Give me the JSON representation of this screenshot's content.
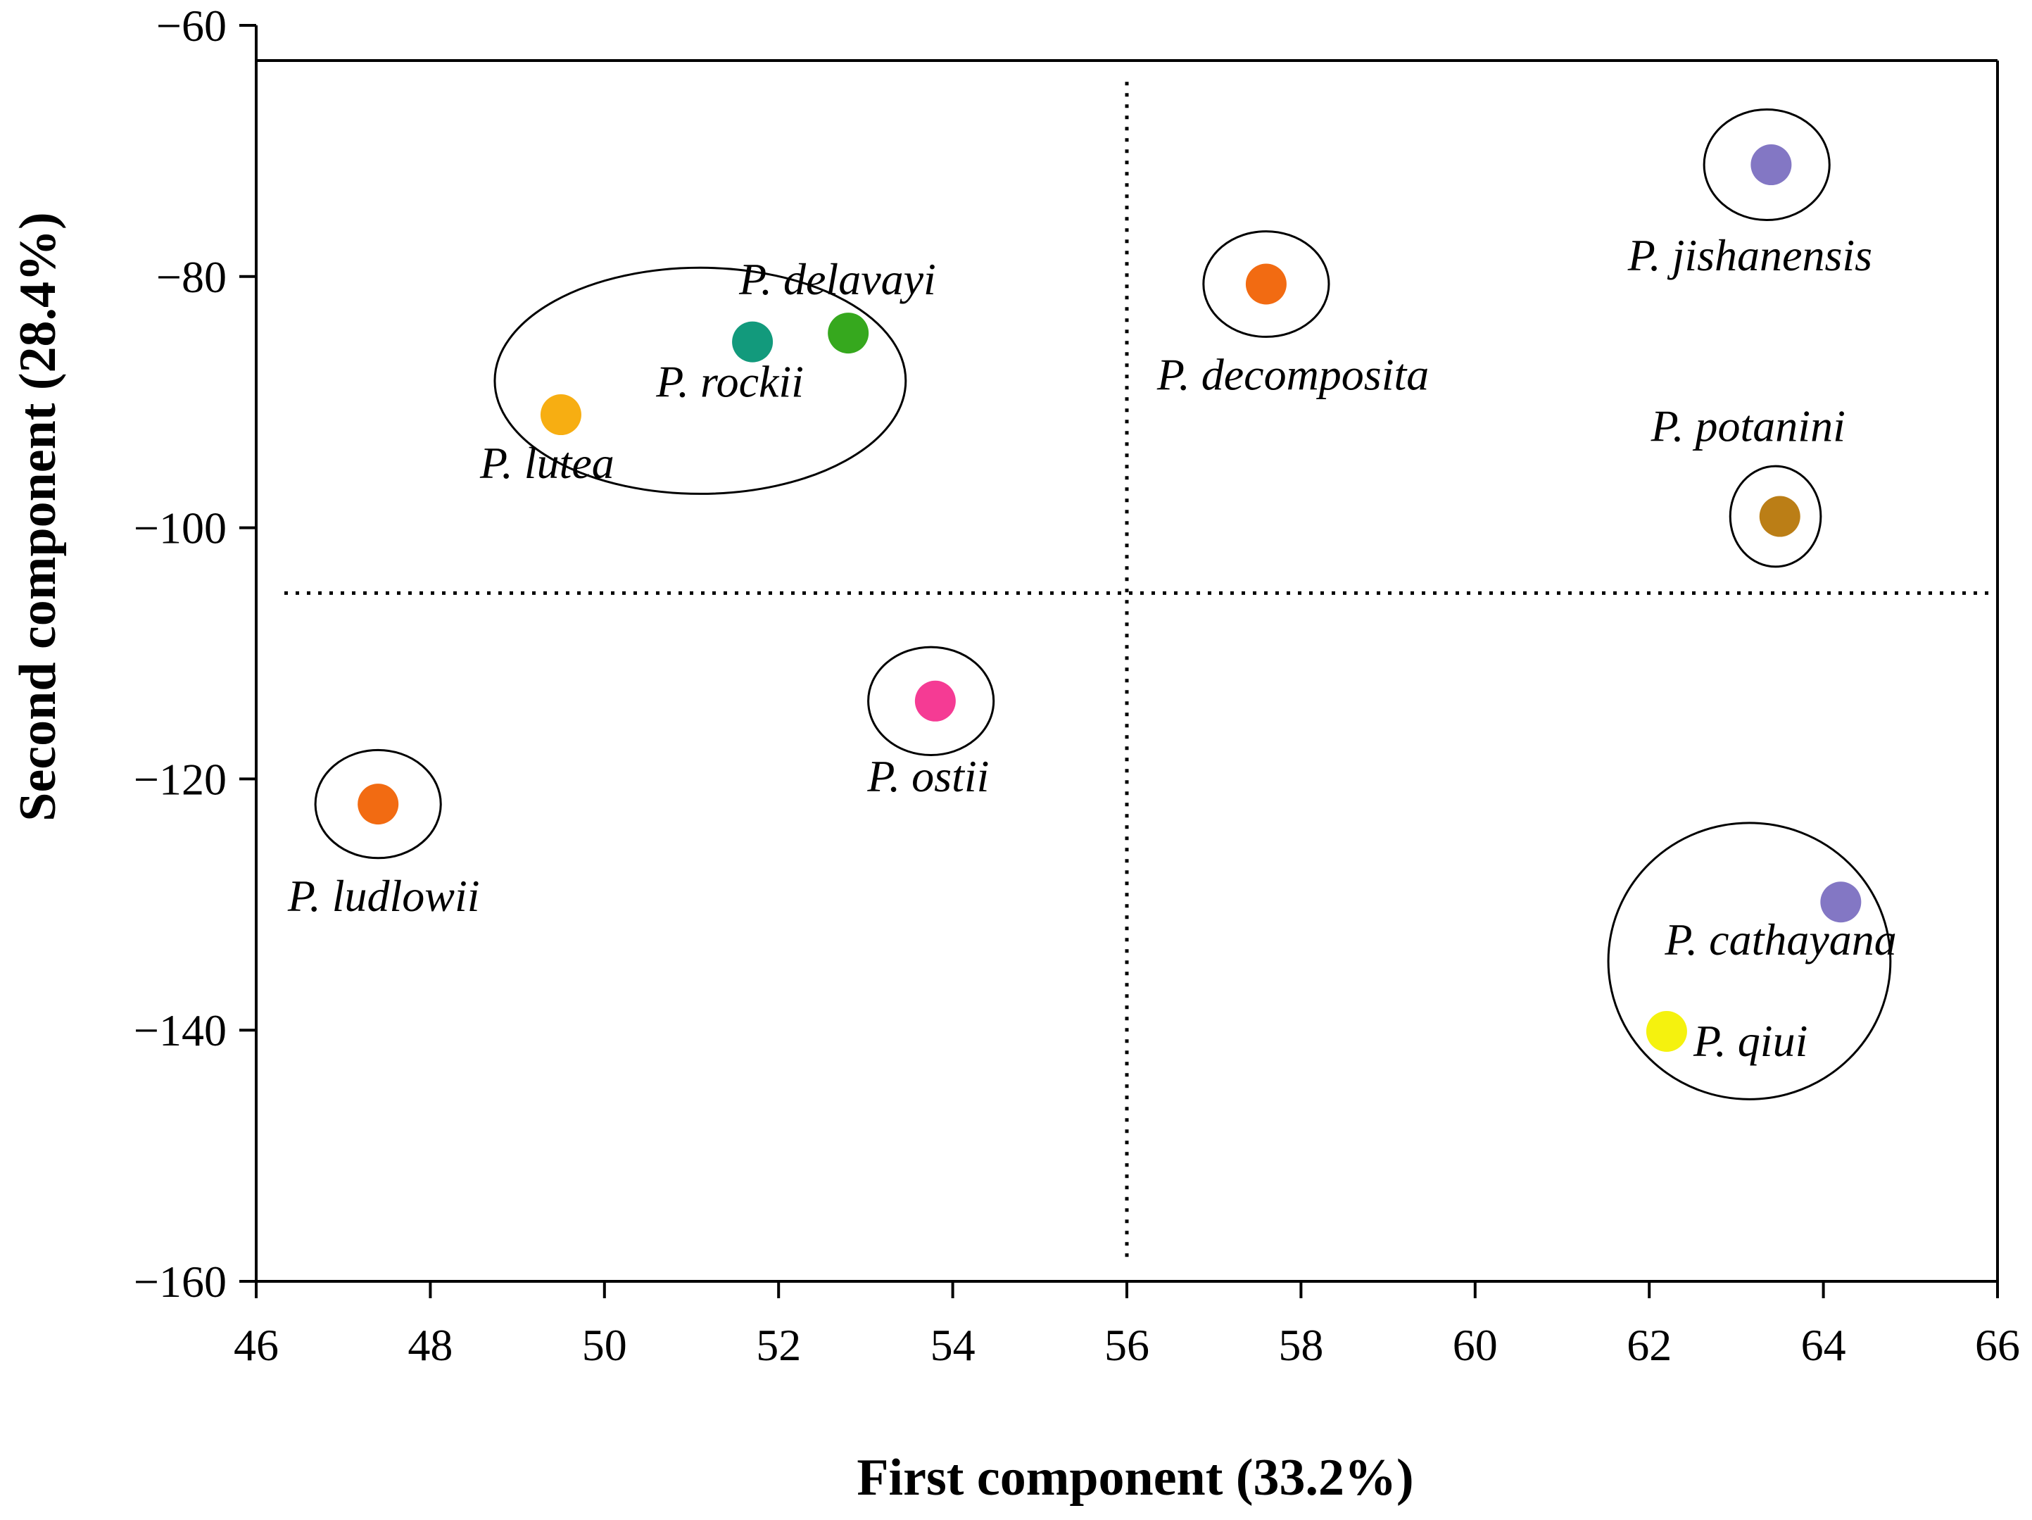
{
  "chart_data": {
    "type": "scatter",
    "title": "",
    "xlabel": "First component (33.2%)",
    "ylabel": "Second component (28.4%)",
    "xlim": [
      46,
      66
    ],
    "ylim": [
      -160,
      -60
    ],
    "grid": false,
    "x_ticks": [
      "46",
      "48",
      "50",
      "52",
      "54",
      "56",
      "58",
      "60",
      "62",
      "64",
      "66"
    ],
    "y_ticks": [
      "−60",
      "−80",
      "−100",
      "−120",
      "−140",
      "−160"
    ],
    "reference_lines": {
      "vertical_x": 56,
      "horizontal_y": -105.2,
      "top_line_y": -62.8
    },
    "points": [
      {
        "label": "P. jishanensis",
        "x": 63.4,
        "y": -71.1,
        "color": "#8377c4"
      },
      {
        "label": "P. decomposita",
        "x": 57.6,
        "y": -80.6,
        "color": "#f26b12"
      },
      {
        "label": "P. delavayi",
        "x": 52.8,
        "y": -84.5,
        "color": "#36a81e"
      },
      {
        "label": "P. rockii",
        "x": 51.7,
        "y": -85.2,
        "color": "#129a7c"
      },
      {
        "label": "P. lutea",
        "x": 49.5,
        "y": -91.0,
        "color": "#f7ae12"
      },
      {
        "label": "P. potanini",
        "x": 63.5,
        "y": -99.1,
        "color": "#bb7e16"
      },
      {
        "label": "P. ostii",
        "x": 53.8,
        "y": -113.8,
        "color": "#f53b94"
      },
      {
        "label": "P. ludlowii",
        "x": 47.4,
        "y": -122.0,
        "color": "#f26b12"
      },
      {
        "label": "P. cathayana",
        "x": 64.2,
        "y": -129.8,
        "color": "#8377c4"
      },
      {
        "label": "P. qiui",
        "x": 62.2,
        "y": -140.1,
        "color": "#f5f20e"
      }
    ],
    "groups": [
      {
        "members": [
          "P. jishanensis"
        ],
        "cx": 63.35,
        "cy": -71.1,
        "rx": 0.72,
        "ry": 4.4
      },
      {
        "members": [
          "P. decomposita"
        ],
        "cx": 57.6,
        "cy": -80.6,
        "rx": 0.72,
        "ry": 4.2
      },
      {
        "members": [
          "P. delavayi",
          "P. rockii",
          "P. lutea"
        ],
        "cx": 51.1,
        "cy": -88.3,
        "rx": 2.36,
        "ry": 9.0
      },
      {
        "members": [
          "P. potanini"
        ],
        "cx": 63.45,
        "cy": -99.1,
        "rx": 0.52,
        "ry": 4.0
      },
      {
        "members": [
          "P. ostii"
        ],
        "cx": 53.75,
        "cy": -113.8,
        "rx": 0.72,
        "ry": 4.3
      },
      {
        "members": [
          "P. ludlowii"
        ],
        "cx": 47.4,
        "cy": -122.0,
        "rx": 0.72,
        "ry": 4.3
      },
      {
        "members": [
          "P. cathayana",
          "P. qiui"
        ],
        "cx": 63.15,
        "cy": -134.5,
        "rx": 1.62,
        "ry": 11.0
      }
    ]
  }
}
